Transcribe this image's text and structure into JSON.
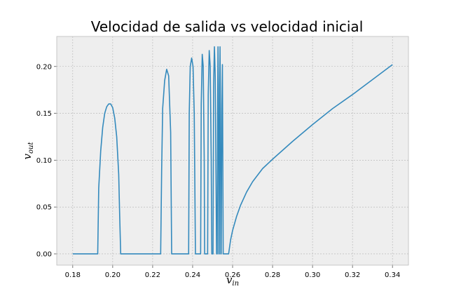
{
  "chart_data": {
    "type": "line",
    "title": "Velocidad de salida vs velocidad inicial",
    "xlabel": "v_in",
    "ylabel": "v_out",
    "xlim": [
      0.172,
      0.348
    ],
    "ylim": [
      -0.012,
      0.232
    ],
    "xticks": [
      0.18,
      0.2,
      0.22,
      0.24,
      0.26,
      0.28,
      0.3,
      0.32,
      0.34
    ],
    "xtick_labels": [
      "0.18",
      "0.20",
      "0.22",
      "0.24",
      "0.26",
      "0.28",
      "0.30",
      "0.32",
      "0.34"
    ],
    "yticks": [
      0.0,
      0.05,
      0.1,
      0.15,
      0.2
    ],
    "ytick_labels": [
      "0.00",
      "0.05",
      "0.10",
      "0.15",
      "0.20"
    ],
    "grid": true,
    "color": "#348abd",
    "series": [
      {
        "name": "",
        "x": [
          0.18,
          0.1925,
          0.193,
          0.194,
          0.195,
          0.196,
          0.197,
          0.198,
          0.199,
          0.2,
          0.201,
          0.202,
          0.203,
          0.2035,
          0.204,
          0.224,
          0.2245,
          0.225,
          0.226,
          0.227,
          0.228,
          0.229,
          0.2295,
          0.238,
          0.2383,
          0.2388,
          0.2395,
          0.2402,
          0.2408,
          0.2414,
          0.244,
          0.2443,
          0.2448,
          0.2453,
          0.2458,
          0.246,
          0.2475,
          0.2478,
          0.2483,
          0.2488,
          0.2493,
          0.2496,
          0.2502,
          0.2505,
          0.2509,
          0.2513,
          0.2517,
          0.252,
          0.2523,
          0.2525,
          0.2527,
          0.2529,
          0.2531,
          0.2533,
          0.2535,
          0.2537,
          0.2539,
          0.2541,
          0.2543,
          0.2546,
          0.2549,
          0.2551,
          0.2553,
          0.258,
          0.259,
          0.26,
          0.262,
          0.264,
          0.267,
          0.27,
          0.275,
          0.28,
          0.29,
          0.3,
          0.31,
          0.32,
          0.33,
          0.34
        ],
        "y": [
          0.0,
          0.0,
          0.07,
          0.11,
          0.135,
          0.15,
          0.157,
          0.16,
          0.16,
          0.156,
          0.145,
          0.125,
          0.085,
          0.04,
          0.0,
          0.0,
          0.09,
          0.155,
          0.185,
          0.197,
          0.19,
          0.13,
          0.0,
          0.0,
          0.15,
          0.2,
          0.209,
          0.2,
          0.15,
          0.0,
          0.0,
          0.16,
          0.213,
          0.2,
          0.1,
          0.0,
          0.0,
          0.17,
          0.217,
          0.2,
          0.1,
          0.0,
          0.0,
          0.18,
          0.221,
          0.19,
          0.08,
          0.0,
          0.0,
          0.15,
          0.221,
          0.18,
          0.0,
          0.0,
          0.14,
          0.221,
          0.16,
          0.0,
          0.0,
          0.15,
          0.202,
          0.1,
          0.0,
          0.0,
          0.015,
          0.025,
          0.04,
          0.052,
          0.066,
          0.077,
          0.091,
          0.101,
          0.12,
          0.138,
          0.155,
          0.17,
          0.186,
          0.202
        ]
      }
    ]
  }
}
